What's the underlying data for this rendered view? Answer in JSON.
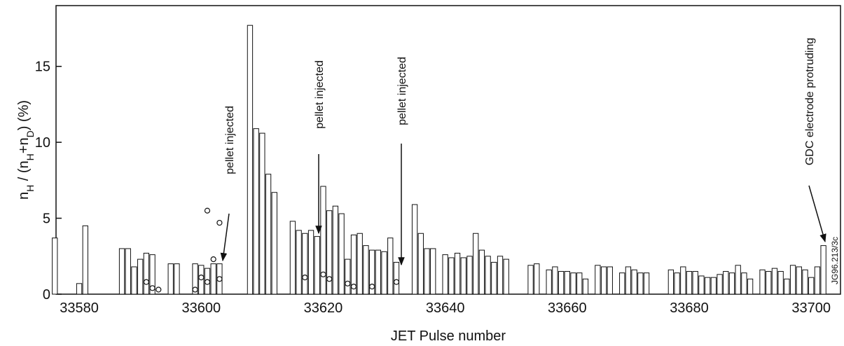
{
  "chart_data": {
    "type": "bar",
    "xlabel": "JET Pulse number",
    "ylabel": [
      {
        "text": "n"
      },
      {
        "text": "H",
        "sub": true
      },
      {
        "text": " / (n"
      },
      {
        "text": "H",
        "sub": true
      },
      {
        "text": "+n"
      },
      {
        "text": "D",
        "sub": true
      },
      {
        "text": ") (%)"
      }
    ],
    "x": [
      33576,
      33580,
      33581,
      33587,
      33588,
      33589,
      33590,
      33591,
      33592,
      33595,
      33596,
      33599,
      33600,
      33601,
      33602,
      33603,
      33608,
      33609,
      33610,
      33611,
      33612,
      33615,
      33616,
      33617,
      33618,
      33619,
      33620,
      33621,
      33622,
      33623,
      33624,
      33625,
      33626,
      33627,
      33628,
      33629,
      33630,
      33631,
      33632,
      33635,
      33636,
      33637,
      33638,
      33640,
      33641,
      33642,
      33643,
      33644,
      33645,
      33646,
      33647,
      33648,
      33649,
      33650,
      33654,
      33655,
      33657,
      33658,
      33659,
      33660,
      33661,
      33662,
      33663,
      33665,
      33666,
      33667,
      33669,
      33670,
      33671,
      33672,
      33673,
      33677,
      33678,
      33679,
      33680,
      33681,
      33682,
      33683,
      33684,
      33685,
      33686,
      33687,
      33688,
      33689,
      33690,
      33692,
      33693,
      33694,
      33695,
      33696,
      33697,
      33698,
      33699,
      33700,
      33701,
      33702
    ],
    "values": [
      3.7,
      0.7,
      4.5,
      3.0,
      3.0,
      1.8,
      2.3,
      2.7,
      2.6,
      2.0,
      2.0,
      2.0,
      1.9,
      1.7,
      2.0,
      2.0,
      17.7,
      10.9,
      10.6,
      7.9,
      6.7,
      4.8,
      4.2,
      4.0,
      4.2,
      3.8,
      7.1,
      5.5,
      5.8,
      5.3,
      2.3,
      3.9,
      4.0,
      3.2,
      2.9,
      2.9,
      2.8,
      3.7,
      2.1,
      5.9,
      4.0,
      3.0,
      3.0,
      2.6,
      2.4,
      2.7,
      2.4,
      2.5,
      4.0,
      2.9,
      2.5,
      2.1,
      2.5,
      2.3,
      1.9,
      2.0,
      1.6,
      1.8,
      1.5,
      1.5,
      1.4,
      1.4,
      1.0,
      1.9,
      1.8,
      1.8,
      1.4,
      1.8,
      1.6,
      1.4,
      1.4,
      1.6,
      1.4,
      1.8,
      1.5,
      1.5,
      1.2,
      1.1,
      1.1,
      1.3,
      1.5,
      1.4,
      1.9,
      1.4,
      1.0,
      1.6,
      1.5,
      1.7,
      1.5,
      1.0,
      1.9,
      1.8,
      1.6,
      1.1,
      1.8,
      3.2
    ],
    "color": "#ffffff",
    "edgecolor": "#111111",
    "circles": {
      "x": [
        33591,
        33592,
        33593,
        33599,
        33600,
        33601,
        33601,
        33602,
        33603,
        33603,
        33617,
        33620,
        33621,
        33624,
        33625,
        33628,
        33632
      ],
      "y": [
        0.8,
        0.4,
        0.3,
        0.3,
        1.1,
        5.5,
        0.8,
        2.3,
        4.7,
        1.0,
        1.1,
        1.3,
        1.0,
        0.7,
        0.5,
        0.5,
        0.8
      ]
    },
    "xlim": [
      33576.2,
      33704.8
    ],
    "ylim": [
      0,
      19
    ],
    "xticks": [
      33580,
      33600,
      33620,
      33640,
      33660,
      33680,
      33700
    ],
    "yticks": [
      0,
      5,
      10,
      15
    ],
    "annotations": [
      "pellet injected",
      "pellet injected",
      "pellet injected",
      "GDC electrode protruding",
      "JG96.213/3c"
    ]
  }
}
